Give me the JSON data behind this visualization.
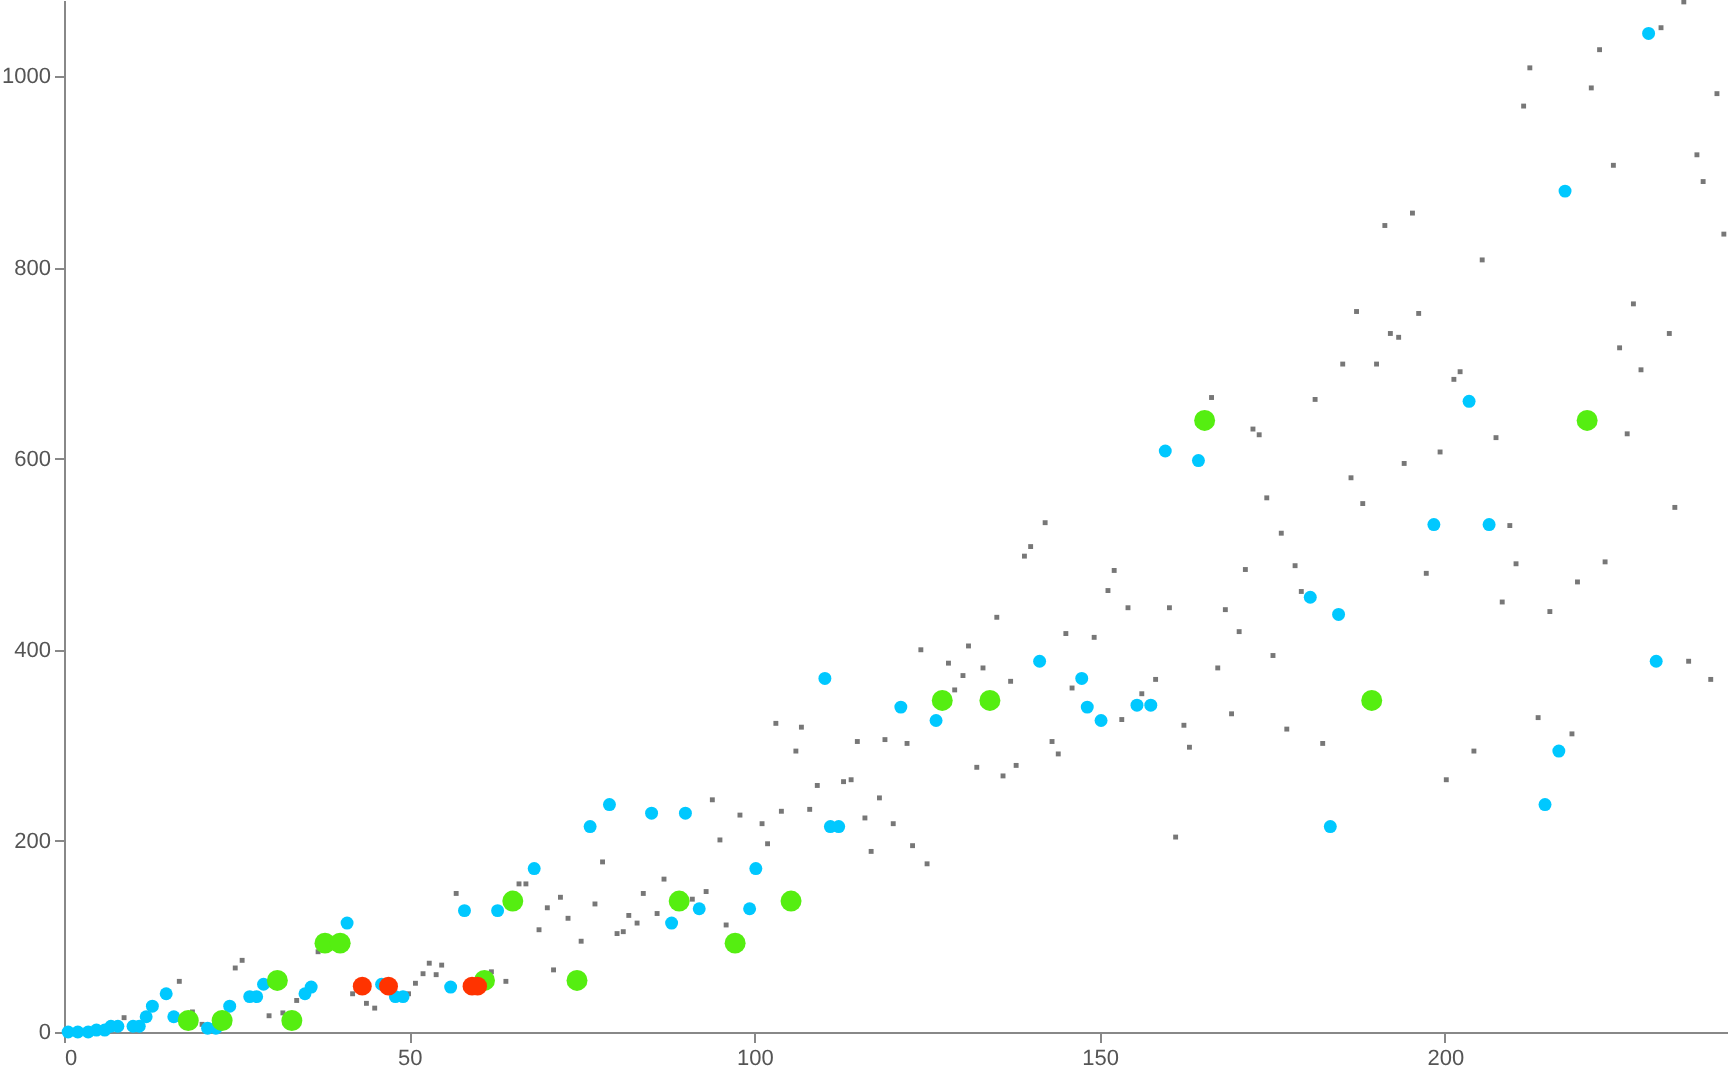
{
  "chart_data": {
    "type": "scatter",
    "xlim": [
      0,
      241
    ],
    "ylim": [
      0,
      1080
    ],
    "xticks": [
      0,
      50,
      100,
      150,
      200
    ],
    "yticks": [
      0,
      200,
      400,
      600,
      800,
      1000
    ],
    "grid": false,
    "series": [
      {
        "color": "#777777",
        "marker": "square",
        "x": [
          8.7,
          16.7,
          18.6,
          20.0,
          24.8,
          25.8,
          29.7,
          31.7,
          33.7,
          36.8,
          41.8,
          43.8,
          45.0,
          49.9,
          50.9,
          52.0,
          52.9,
          53.9,
          54.7,
          56.8,
          61.9,
          64.0,
          65.9,
          66.9,
          68.8,
          70.0,
          70.9,
          71.9,
          73.0,
          74.9,
          76.9,
          78.0,
          80.1,
          81.0,
          81.8,
          83.0,
          83.9,
          85.9,
          86.9,
          91.0,
          93.0,
          93.9,
          95.0,
          95.9,
          97.9,
          101.1,
          101.9,
          103.1,
          103.9,
          106.0,
          106.8,
          108.0,
          109.1,
          112.9,
          114.0,
          114.9,
          116.0,
          116.9,
          118.1,
          118.9,
          120.1,
          122.1,
          122.9,
          124.1,
          125.0,
          128.1,
          129.0,
          130.2,
          131.0,
          132.2,
          133.1,
          135.1,
          136.0,
          137.1,
          137.9,
          139.1,
          140.0,
          142.1,
          143.1,
          144.0,
          145.1,
          146.0,
          149.2,
          151.2,
          152.1,
          153.2,
          154.1,
          156.1,
          158.1,
          160.1,
          161.0,
          162.2,
          163.0,
          166.2,
          167.1,
          168.2,
          169.1,
          170.2,
          171.1,
          172.2,
          173.1,
          174.2,
          175.1,
          176.3,
          177.1,
          178.3,
          179.2,
          181.2,
          182.3,
          185.2,
          186.4,
          187.2,
          188.1,
          190.1,
          191.3,
          192.1,
          193.3,
          194.1,
          195.3,
          196.2,
          197.3,
          199.3,
          200.2,
          201.3,
          202.2,
          204.2,
          205.4,
          207.4,
          208.3,
          209.4,
          210.3,
          211.4,
          212.3,
          213.5,
          215.2,
          218.4,
          219.2,
          221.2,
          222.4,
          223.2,
          224.4,
          225.3,
          226.4,
          227.3,
          228.4,
          231.3,
          232.5,
          233.3,
          234.6,
          235.3,
          236.5,
          237.4,
          238.5,
          239.4,
          240.4
        ],
        "values": [
          15,
          53,
          21,
          8,
          67,
          75,
          17,
          20,
          33,
          84,
          40,
          30,
          25,
          40,
          51,
          61,
          72,
          60,
          70,
          145,
          63,
          53,
          155,
          155,
          107,
          130,
          65,
          141,
          119,
          95,
          134,
          178,
          103,
          105,
          122,
          114,
          145,
          124,
          160,
          139,
          147,
          243,
          201,
          112,
          227,
          218,
          197,
          323,
          231,
          294,
          319,
          233,
          258,
          262,
          264,
          304,
          224,
          189,
          245,
          306,
          218,
          302,
          195,
          400,
          176,
          386,
          358,
          373,
          404,
          277,
          381,
          434,
          268,
          367,
          279,
          498,
          508,
          533,
          304,
          291,
          417,
          360,
          413,
          462,
          483,
          327,
          444,
          354,
          369,
          444,
          204,
          321,
          298,
          664,
          381,
          442,
          333,
          419,
          484,
          631,
          625,
          559,
          394,
          522,
          317,
          488,
          461,
          662,
          302,
          699,
          580,
          754,
          553,
          699,
          844,
          731,
          727,
          595,
          857,
          752,
          480,
          607,
          264,
          683,
          691,
          294,
          808,
          622,
          450,
          530,
          490,
          969,
          1009,
          329,
          440,
          312,
          471,
          988,
          1028,
          492,
          907,
          716,
          626,
          762,
          693,
          1051,
          731,
          549,
          1078,
          388,
          918,
          890,
          369,
          982,
          835
        ]
      },
      {
        "color": "#00c8ff",
        "marker": "circle",
        "x": [
          0.6,
          2.0,
          3.5,
          4.7,
          5.9,
          6.8,
          7.8,
          10.0,
          10.9,
          11.9,
          12.8,
          14.8,
          15.9,
          20.8,
          22.0,
          24.0,
          26.9,
          27.9,
          28.9,
          34.9,
          35.8,
          41.0,
          46.0,
          48.0,
          49.1,
          56.0,
          58.0,
          62.8,
          68.1,
          76.2,
          79.0,
          85.1,
          88.0,
          90.0,
          92.0,
          99.3,
          100.2,
          110.2,
          111.0,
          112.2,
          121.2,
          126.3,
          141.3,
          147.4,
          148.2,
          150.2,
          155.4,
          157.4,
          159.5,
          164.3,
          180.5,
          183.4,
          184.6,
          198.4,
          203.5,
          206.4,
          214.5,
          216.5,
          217.4,
          229.5,
          230.6
        ],
        "values": [
          0,
          0,
          0,
          2,
          2,
          6,
          6,
          6,
          6,
          16,
          27,
          40,
          16,
          4,
          4,
          27,
          37,
          37,
          50,
          40,
          47,
          114,
          50,
          37,
          37,
          47,
          127,
          127,
          171,
          215,
          238,
          229,
          114,
          229,
          129,
          129,
          171,
          370,
          215,
          215,
          340,
          326,
          388,
          370,
          340,
          326,
          342,
          342,
          608,
          598,
          455,
          215,
          437,
          531,
          660,
          531,
          238,
          294,
          880,
          1045,
          388
        ]
      },
      {
        "color": "#55ee11",
        "marker": "circle",
        "x": [
          18.0,
          22.9,
          30.9,
          33.0,
          37.8,
          40.0,
          60.9,
          65.0,
          74.3,
          89.1,
          97.2,
          105.3,
          127.2,
          134.1,
          165.2,
          189.4,
          220.6
        ],
        "values": [
          12,
          12,
          54,
          12,
          93,
          93,
          54,
          137,
          54,
          137,
          93,
          137,
          347,
          347,
          640,
          347,
          640
        ]
      },
      {
        "color": "#ff3300",
        "marker": "circle",
        "x": [
          43.2,
          47.0,
          59.1,
          59.9
        ],
        "values": [
          48,
          48,
          48,
          48
        ]
      }
    ]
  }
}
